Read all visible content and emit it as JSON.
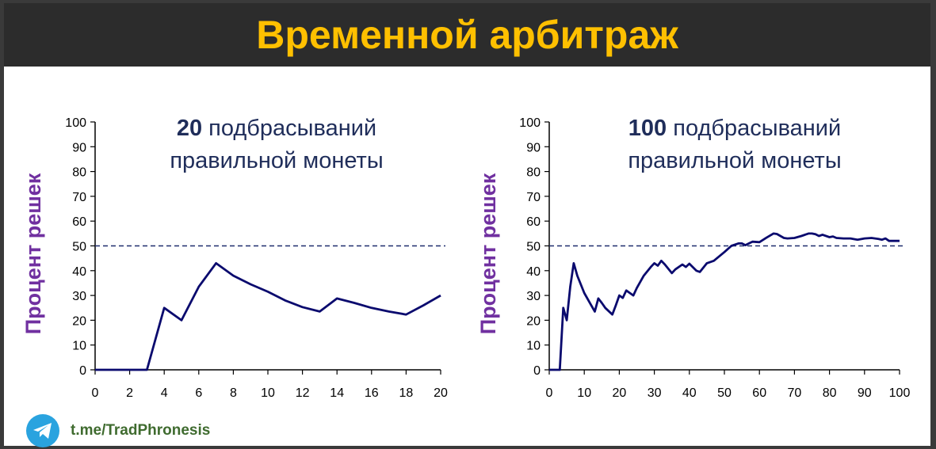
{
  "header": {
    "title": "Временной арбитраж"
  },
  "footer": {
    "link": "t.me/TradPhronesis",
    "icon": "telegram-icon"
  },
  "colors": {
    "title": "#ffc000",
    "line": "#0a0a6e",
    "ylabel": "#7030a0",
    "chart_title": "#1f2d5a"
  },
  "chart_data": [
    {
      "type": "line",
      "title_bold": "20",
      "title_rest": " подбрасываний",
      "title_line2": "правильной монеты",
      "ylabel": "Процент решек",
      "xlabel": "",
      "ylim": [
        0,
        100
      ],
      "xlim": [
        0,
        20
      ],
      "yticks": [
        "0",
        "10",
        "20",
        "30",
        "40",
        "50",
        "60",
        "70",
        "80",
        "90",
        "100"
      ],
      "xticks": [
        "0",
        "2",
        "4",
        "6",
        "8",
        "10",
        "12",
        "14",
        "16",
        "18",
        "20"
      ],
      "reference_line": 50,
      "series": [
        {
          "x": [
            0,
            1,
            2,
            3,
            4,
            5,
            6,
            7,
            8,
            9,
            10,
            11,
            12,
            13,
            14,
            15,
            16,
            17,
            18,
            19,
            20
          ],
          "values": [
            0,
            0,
            0,
            0,
            25,
            20,
            33.5,
            43,
            38,
            34.5,
            31.5,
            28,
            25.3,
            23.5,
            28.8,
            27,
            25,
            23.5,
            22.3,
            26,
            30
          ]
        }
      ]
    },
    {
      "type": "line",
      "title_bold": "100",
      "title_rest": " подбрасываний",
      "title_line2": "правильной монеты",
      "ylabel": "Процент решек",
      "xlabel": "",
      "ylim": [
        0,
        100
      ],
      "xlim": [
        0,
        100
      ],
      "yticks": [
        "0",
        "10",
        "20",
        "30",
        "40",
        "50",
        "60",
        "70",
        "80",
        "90",
        "100"
      ],
      "xticks": [
        "0",
        "10",
        "20",
        "30",
        "40",
        "50",
        "60",
        "70",
        "80",
        "90",
        "100"
      ],
      "reference_line": 50,
      "series": [
        {
          "x": [
            0,
            1,
            2,
            3,
            4,
            5,
            6,
            7,
            8,
            10,
            12,
            13,
            14,
            15,
            16,
            18,
            19,
            20,
            21,
            22,
            23,
            24,
            25,
            27,
            29,
            30,
            31,
            32,
            33,
            35,
            36,
            38,
            39,
            40,
            42,
            43,
            45,
            47,
            50,
            52,
            54,
            55,
            56,
            57,
            58,
            60,
            62,
            64,
            65,
            66,
            67,
            68,
            70,
            72,
            74,
            75,
            76,
            77,
            78,
            80,
            81,
            82,
            84,
            86,
            88,
            90,
            92,
            94,
            95,
            96,
            97,
            98,
            100
          ],
          "values": [
            0,
            0,
            0,
            0,
            25,
            20,
            33.5,
            43,
            38,
            31,
            26,
            23.5,
            28.8,
            27,
            25,
            22.3,
            26,
            30,
            29,
            32,
            31,
            30,
            33,
            38,
            41.5,
            43,
            42,
            44,
            42.5,
            39,
            40.5,
            42.5,
            41.5,
            42.8,
            40,
            39.5,
            43,
            44,
            47.5,
            50,
            51,
            51,
            50.3,
            51,
            51.7,
            51.5,
            53.3,
            55,
            54.8,
            54,
            53.2,
            53,
            53.2,
            54,
            55,
            55,
            54.7,
            54,
            54.5,
            53.5,
            53.8,
            53.2,
            53,
            53,
            52.5,
            53,
            53.2,
            52.8,
            52.5,
            53,
            52,
            52,
            52
          ]
        }
      ]
    }
  ]
}
